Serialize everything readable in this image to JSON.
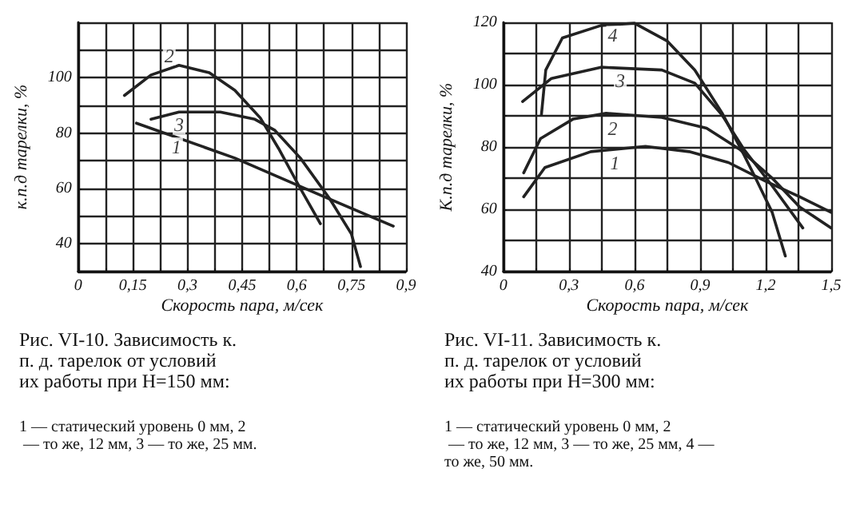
{
  "chart_data": [
    {
      "type": "line",
      "title": "Рис. VI-10. Зависимость к. п. д. тарелок от условий их работы при H=150 мм:",
      "xlabel": "Скорость пара, м/сек",
      "ylabel": "к.п.д тарелки, %",
      "grid": true,
      "marker": "none",
      "line_style": "solid",
      "xlim": [
        0,
        0.9
      ],
      "ylim": [
        30,
        120
      ],
      "xticks": [
        0,
        {
          "value": 0.075,
          "label": null
        },
        {
          "value": 0.15,
          "label": "0,15"
        },
        {
          "value": 0.225,
          "label": null
        },
        {
          "value": 0.3,
          "label": "0,3"
        },
        {
          "value": 0.375,
          "label": null
        },
        {
          "value": 0.45,
          "label": "0,45"
        },
        {
          "value": 0.525,
          "label": null
        },
        {
          "value": 0.6,
          "label": "0,6"
        },
        {
          "value": 0.675,
          "label": null
        },
        {
          "value": 0.75,
          "label": "0,75"
        },
        {
          "value": 0.825,
          "label": null
        },
        {
          "value": 0.9,
          "label": "0,9"
        }
      ],
      "yticks": [
        {
          "value": 30,
          "label": null
        },
        40,
        {
          "value": 50,
          "label": null
        },
        60,
        {
          "value": 70,
          "label": null
        },
        80,
        {
          "value": 90,
          "label": null
        },
        100,
        {
          "value": 110,
          "label": null
        },
        {
          "value": 120,
          "label": null
        }
      ],
      "series": [
        {
          "color": "#222222",
          "x": [
            0.16,
            0.43,
            0.64,
            0.865
          ],
          "values": [
            83.6,
            71,
            59,
            46.4
          ]
        },
        {
          "color": "#222222",
          "x": [
            0.127,
            0.2,
            0.277,
            0.36,
            0.43,
            0.5,
            0.55,
            0.61,
            0.665
          ],
          "values": [
            93.6,
            101,
            104.5,
            101.8,
            95.5,
            85.5,
            74.5,
            60,
            47.3
          ]
        },
        {
          "color": "#222222",
          "x": [
            0.2,
            0.277,
            0.39,
            0.485,
            0.54,
            0.61,
            0.69,
            0.75,
            0.775
          ],
          "values": [
            85,
            87.6,
            87.6,
            85,
            81,
            71,
            56.4,
            43.6,
            31.8
          ]
        }
      ],
      "annotations": [
        {
          "text": "1",
          "x": 0.27,
          "y": 75
        },
        {
          "text": "2",
          "x": 0.25,
          "y": 108
        },
        {
          "text": "3",
          "x": 0.277,
          "y": 83
        },
        "1 — статический уровень 0 мм, 2 — то же, 12 мм, 3 — то же, 25 мм."
      ]
    },
    {
      "type": "line",
      "title": "Рис. VI-11. Зависимость к. п. д. тарелок от условий их работы при H=300 мм:",
      "xlabel": "Скорость пара, м/сек",
      "ylabel": "К.п.д тарелки, %",
      "grid": true,
      "marker": "none",
      "line_style": "solid",
      "xlim": [
        0,
        1.5
      ],
      "ylim": [
        40,
        120
      ],
      "xticks": [
        0,
        {
          "value": 0.15,
          "label": null
        },
        {
          "value": 0.3,
          "label": "0,3"
        },
        {
          "value": 0.45,
          "label": null
        },
        {
          "value": 0.6,
          "label": "0,6"
        },
        {
          "value": 0.75,
          "label": null
        },
        {
          "value": 0.9,
          "label": "0,9"
        },
        {
          "value": 1.05,
          "label": null
        },
        {
          "value": 1.2,
          "label": "1,2"
        },
        {
          "value": 1.35,
          "label": null
        },
        {
          "value": 1.5,
          "label": "1,5"
        }
      ],
      "yticks": [
        40,
        {
          "value": 50,
          "label": null
        },
        60,
        {
          "value": 70,
          "label": null
        },
        80,
        {
          "value": 90,
          "label": null
        },
        100,
        {
          "value": 110,
          "label": null
        },
        120
      ],
      "series": [
        {
          "color": "#222222",
          "x": [
            0.093,
            0.19,
            0.4,
            0.65,
            0.85,
            1.03,
            1.2,
            1.356,
            1.5
          ],
          "values": [
            64,
            73.4,
            78.5,
            80.2,
            78.5,
            75,
            69,
            64,
            59
          ]
        },
        {
          "color": "#222222",
          "x": [
            0.093,
            0.17,
            0.32,
            0.47,
            0.725,
            0.93,
            1.08,
            1.23,
            1.356,
            1.5
          ],
          "values": [
            71.7,
            82.7,
            89,
            90.8,
            89.5,
            86,
            79.3,
            70,
            60.7,
            54
          ]
        },
        {
          "color": "#222222",
          "x": [
            0.088,
            0.22,
            0.447,
            0.725,
            0.876,
            1.0,
            1.1,
            1.23,
            1.37
          ],
          "values": [
            94.6,
            102,
            105.6,
            104.7,
            100.5,
            90.3,
            79.3,
            67.5,
            54
          ]
        },
        {
          "color": "#222222",
          "x": [
            0.174,
            0.194,
            0.27,
            0.447,
            0.6,
            0.75,
            0.876,
            1.0,
            1.1,
            1.154,
            1.23,
            1.29
          ],
          "values": [
            90.3,
            104.7,
            115,
            119,
            119.7,
            114,
            104.7,
            91,
            77.6,
            70,
            59,
            45
          ]
        }
      ],
      "annotations": [
        {
          "text": "1",
          "x": 0.51,
          "y": 75
        },
        {
          "text": "2",
          "x": 0.5,
          "y": 86
        },
        {
          "text": "3",
          "x": 0.535,
          "y": 101.4
        },
        {
          "text": "4",
          "x": 0.5,
          "y": 115.8
        },
        "1 — статический уровень 0 мм, 2 — то же, 12 мм, 3 — то же, 25 мм, 4 — то же, 50 мм."
      ]
    }
  ]
}
